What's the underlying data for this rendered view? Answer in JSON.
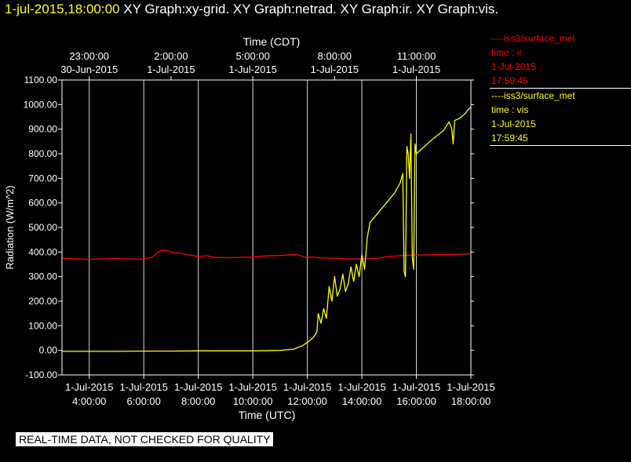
{
  "header": {
    "timestamp": "1-jul-2015,18:00:00",
    "graphs": "XY Graph:xy-grid.  XY Graph:netrad.  XY Graph:ir.  XY Graph:vis."
  },
  "legend": [
    {
      "name": "----iss3/surface_met",
      "var": "time : ir",
      "date": "1-Jul-2015",
      "time": "17:59:45",
      "color": "#ff0000"
    },
    {
      "name": "----iss3/surface_met",
      "var": "time : vis",
      "date": "1-Jul-2015",
      "time": "17:59:45",
      "color": "#ffff00"
    }
  ],
  "footer_note": "REAL-TIME DATA, NOT CHECKED FOR QUALITY",
  "chart_data": {
    "type": "line",
    "ylabel": "Radiation (W/m^2)",
    "xlabel": "Time (UTC)",
    "top_label": "Time (CDT)",
    "ylim": [
      -100,
      1100
    ],
    "y_ticks": [
      "-100.00",
      "0.00",
      "100.00",
      "200.00",
      "300.00",
      "400.00",
      "500.00",
      "600.00",
      "700.00",
      "800.00",
      "900.00",
      "1000.00",
      "1100.00"
    ],
    "xlim_hours_utc": [
      3.0,
      18.0
    ],
    "bottom_ticks": [
      {
        "hour": 4,
        "date": "1-Jul-2015",
        "time": "4:00:00"
      },
      {
        "hour": 6,
        "date": "1-Jul-2015",
        "time": "6:00:00"
      },
      {
        "hour": 8,
        "date": "1-Jul-2015",
        "time": "8:00:00"
      },
      {
        "hour": 10,
        "date": "1-Jul-2015",
        "time": "10:00:00"
      },
      {
        "hour": 12,
        "date": "1-Jul-2015",
        "time": "12:00:00"
      },
      {
        "hour": 14,
        "date": "1-Jul-2015",
        "time": "14:00:00"
      },
      {
        "hour": 16,
        "date": "1-Jul-2015",
        "time": "16:00:00"
      },
      {
        "hour": 18,
        "date": "1-Jul-2015",
        "time": "18:00:00"
      }
    ],
    "top_ticks": [
      {
        "hour": 4,
        "time": "23:00:00",
        "date": "30-Jun-2015"
      },
      {
        "hour": 7,
        "time": "2:00:00",
        "date": "1-Jul-2015"
      },
      {
        "hour": 10,
        "time": "5:00:00",
        "date": "1-Jul-2015"
      },
      {
        "hour": 13,
        "time": "8:00:00",
        "date": "1-Jul-2015"
      },
      {
        "hour": 16,
        "time": "11:00:00",
        "date": "1-Jul-2015"
      }
    ],
    "grid": true,
    "series": [
      {
        "color": "#ff0000",
        "points": [
          [
            3.0,
            375
          ],
          [
            3.5,
            373
          ],
          [
            4.0,
            370
          ],
          [
            4.5,
            372
          ],
          [
            5.0,
            374
          ],
          [
            5.5,
            372
          ],
          [
            6.0,
            371
          ],
          [
            6.3,
            378
          ],
          [
            6.6,
            405
          ],
          [
            6.8,
            408
          ],
          [
            7.0,
            400
          ],
          [
            7.3,
            396
          ],
          [
            7.6,
            390
          ],
          [
            8.0,
            382
          ],
          [
            8.3,
            385
          ],
          [
            8.6,
            378
          ],
          [
            9.0,
            377
          ],
          [
            9.5,
            378
          ],
          [
            10.0,
            380
          ],
          [
            10.5,
            384
          ],
          [
            11.0,
            386
          ],
          [
            11.5,
            390
          ],
          [
            11.7,
            388
          ],
          [
            11.9,
            378
          ],
          [
            12.2,
            380
          ],
          [
            12.5,
            376
          ],
          [
            13.0,
            375
          ],
          [
            13.5,
            372
          ],
          [
            14.0,
            372
          ],
          [
            14.5,
            374
          ],
          [
            15.0,
            382
          ],
          [
            15.5,
            386
          ],
          [
            16.0,
            388
          ],
          [
            16.5,
            389
          ],
          [
            17.0,
            390
          ],
          [
            17.5,
            391
          ],
          [
            18.0,
            393
          ]
        ]
      },
      {
        "color": "#ffff00",
        "points": [
          [
            3.0,
            -4
          ],
          [
            4.0,
            -4
          ],
          [
            5.0,
            -4
          ],
          [
            6.0,
            -3
          ],
          [
            7.0,
            -3
          ],
          [
            8.0,
            -2
          ],
          [
            9.0,
            -2
          ],
          [
            10.0,
            -2
          ],
          [
            11.0,
            0
          ],
          [
            11.5,
            5
          ],
          [
            11.8,
            18
          ],
          [
            12.0,
            32
          ],
          [
            12.2,
            50
          ],
          [
            12.35,
            75
          ],
          [
            12.4,
            150
          ],
          [
            12.5,
            110
          ],
          [
            12.6,
            170
          ],
          [
            12.7,
            130
          ],
          [
            12.8,
            260
          ],
          [
            12.9,
            200
          ],
          [
            13.0,
            300
          ],
          [
            13.1,
            220
          ],
          [
            13.2,
            250
          ],
          [
            13.3,
            310
          ],
          [
            13.4,
            240
          ],
          [
            13.5,
            270
          ],
          [
            13.6,
            340
          ],
          [
            13.7,
            280
          ],
          [
            13.8,
            350
          ],
          [
            13.9,
            300
          ],
          [
            14.0,
            390
          ],
          [
            14.1,
            330
          ],
          [
            14.2,
            460
          ],
          [
            14.3,
            520
          ],
          [
            14.6,
            560
          ],
          [
            14.9,
            600
          ],
          [
            15.2,
            640
          ],
          [
            15.4,
            680
          ],
          [
            15.5,
            720
          ],
          [
            15.55,
            320
          ],
          [
            15.6,
            300
          ],
          [
            15.65,
            830
          ],
          [
            15.7,
            800
          ],
          [
            15.75,
            700
          ],
          [
            15.8,
            880
          ],
          [
            15.85,
            380
          ],
          [
            15.9,
            330
          ],
          [
            15.95,
            840
          ],
          [
            16.0,
            800
          ],
          [
            16.3,
            830
          ],
          [
            16.6,
            860
          ],
          [
            17.0,
            895
          ],
          [
            17.2,
            930
          ],
          [
            17.3,
            900
          ],
          [
            17.35,
            840
          ],
          [
            17.4,
            935
          ],
          [
            17.6,
            945
          ],
          [
            17.8,
            965
          ],
          [
            17.9,
            980
          ],
          [
            18.0,
            990
          ]
        ]
      }
    ]
  }
}
